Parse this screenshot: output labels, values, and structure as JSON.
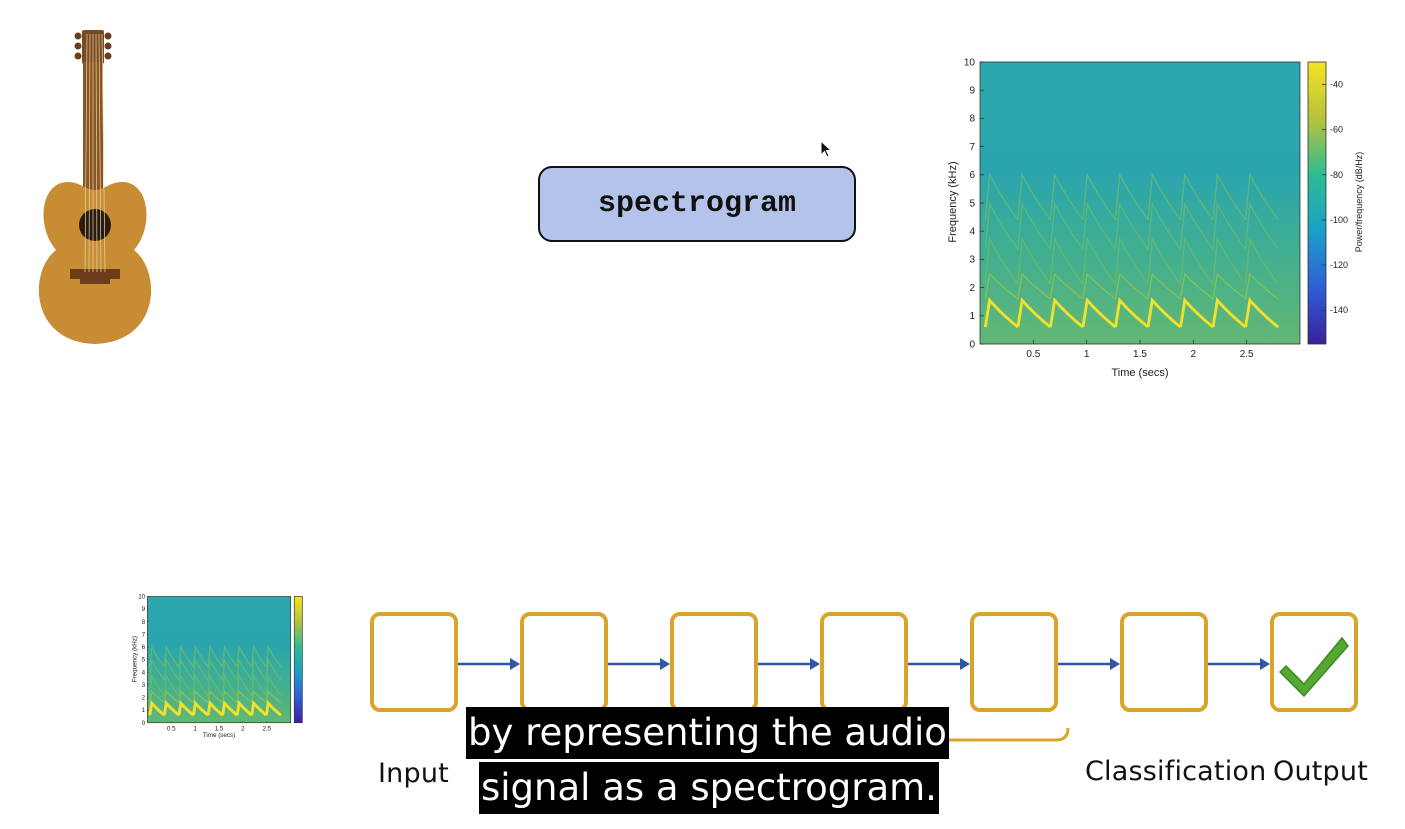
{
  "keyword_box": {
    "label": "spectrogram"
  },
  "colors": {
    "keyword_fill": "#b4c3ea",
    "stage_border": "#d9a32c",
    "arrow": "#2f57a6",
    "check": "#55a832",
    "guitar_body": "#c88d34",
    "guitar_neck": "#8a5424"
  },
  "icons": [
    "guitar-icon",
    "checkmark-icon",
    "mouse-cursor-icon"
  ],
  "spectrogram": {
    "xlabel": "Time (secs)",
    "ylabel": "Frequency (kHz)",
    "colorbar_label": "Power/frequency (dB/Hz)",
    "x_ticks": [
      "0.5",
      "1",
      "1.5",
      "2",
      "2.5"
    ],
    "y_ticks": [
      "0",
      "1",
      "2",
      "3",
      "4",
      "5",
      "6",
      "7",
      "8",
      "9",
      "10"
    ],
    "colorbar_ticks": [
      "-40",
      "-60",
      "-80",
      "-100",
      "-120",
      "-140"
    ]
  },
  "pipeline": {
    "input_label": "Input",
    "classification_label": "Classification",
    "output_label": "Output",
    "stage_count": 7
  },
  "subtitle": {
    "line1": "by representing the audio",
    "line2": "signal as a spectrogram."
  }
}
